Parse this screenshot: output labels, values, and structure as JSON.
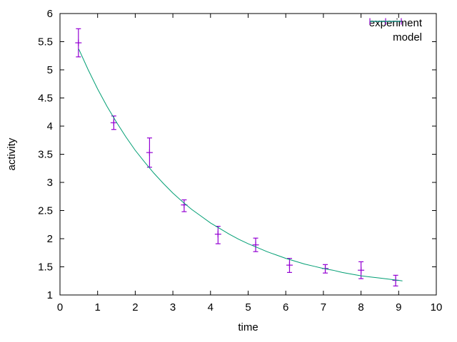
{
  "figure": {
    "background": "#ffffff",
    "axis_color": "#000000",
    "text_color": "#000000"
  },
  "chart_data": {
    "type": "line",
    "title": "",
    "xlabel": "time",
    "ylabel": "activity",
    "xlim": [
      0,
      10
    ],
    "ylim": [
      1,
      6
    ],
    "grid": false,
    "legend_position": "top-right-inside",
    "x_ticks": {
      "values": [
        0,
        1,
        2,
        3,
        4,
        5,
        6,
        7,
        8,
        9,
        10
      ],
      "labels": [
        "0",
        "1",
        "2",
        "3",
        "4",
        "5",
        "6",
        "7",
        "8",
        "9",
        "10"
      ]
    },
    "y_ticks": {
      "values": [
        1,
        1.5,
        2,
        2.5,
        3,
        3.5,
        4,
        4.5,
        5,
        5.5,
        6
      ],
      "labels": [
        "1",
        "1.5",
        "2",
        "2.5",
        "3",
        "3.5",
        "4",
        "4.5",
        "5",
        "5.5",
        "6"
      ]
    },
    "series": [
      {
        "name": "experiment",
        "style": "yerrorbars",
        "color": "#9400d3",
        "points": [
          {
            "x": 0.49,
            "y": 5.48,
            "ylow": 5.23,
            "yhigh": 5.73
          },
          {
            "x": 1.43,
            "y": 4.06,
            "ylow": 3.94,
            "yhigh": 4.18
          },
          {
            "x": 2.38,
            "y": 3.53,
            "ylow": 3.27,
            "yhigh": 3.79
          },
          {
            "x": 3.3,
            "y": 2.6,
            "ylow": 2.48,
            "yhigh": 2.69
          },
          {
            "x": 4.2,
            "y": 2.08,
            "ylow": 1.91,
            "yhigh": 2.22
          },
          {
            "x": 5.2,
            "y": 1.89,
            "ylow": 1.77,
            "yhigh": 2.01
          },
          {
            "x": 6.1,
            "y": 1.53,
            "ylow": 1.4,
            "yhigh": 1.65
          },
          {
            "x": 7.05,
            "y": 1.47,
            "ylow": 1.39,
            "yhigh": 1.54
          },
          {
            "x": 8.0,
            "y": 1.44,
            "ylow": 1.29,
            "yhigh": 1.59
          },
          {
            "x": 8.92,
            "y": 1.26,
            "ylow": 1.16,
            "yhigh": 1.35
          }
        ]
      },
      {
        "name": "model",
        "style": "line",
        "color": "#009e73",
        "points": [
          [
            0.5,
            5.37
          ],
          [
            0.75,
            5.0
          ],
          [
            1.0,
            4.66
          ],
          [
            1.25,
            4.35
          ],
          [
            1.5,
            4.07
          ],
          [
            1.75,
            3.81
          ],
          [
            2.0,
            3.57
          ],
          [
            2.25,
            3.36
          ],
          [
            2.5,
            3.16
          ],
          [
            2.75,
            2.98
          ],
          [
            3.0,
            2.81
          ],
          [
            3.25,
            2.66
          ],
          [
            3.5,
            2.52
          ],
          [
            3.75,
            2.4
          ],
          [
            4.0,
            2.28
          ],
          [
            4.25,
            2.18
          ],
          [
            4.5,
            2.08
          ],
          [
            4.75,
            1.99
          ],
          [
            5.0,
            1.91
          ],
          [
            5.25,
            1.84
          ],
          [
            5.5,
            1.77
          ],
          [
            5.75,
            1.71
          ],
          [
            6.0,
            1.65
          ],
          [
            6.25,
            1.6
          ],
          [
            6.5,
            1.55
          ],
          [
            6.75,
            1.51
          ],
          [
            7.0,
            1.47
          ],
          [
            7.25,
            1.44
          ],
          [
            7.5,
            1.4
          ],
          [
            7.75,
            1.37
          ],
          [
            8.0,
            1.34
          ],
          [
            8.25,
            1.32
          ],
          [
            8.5,
            1.3
          ],
          [
            8.75,
            1.28
          ],
          [
            9.0,
            1.26
          ],
          [
            9.1,
            1.25
          ]
        ]
      }
    ]
  }
}
